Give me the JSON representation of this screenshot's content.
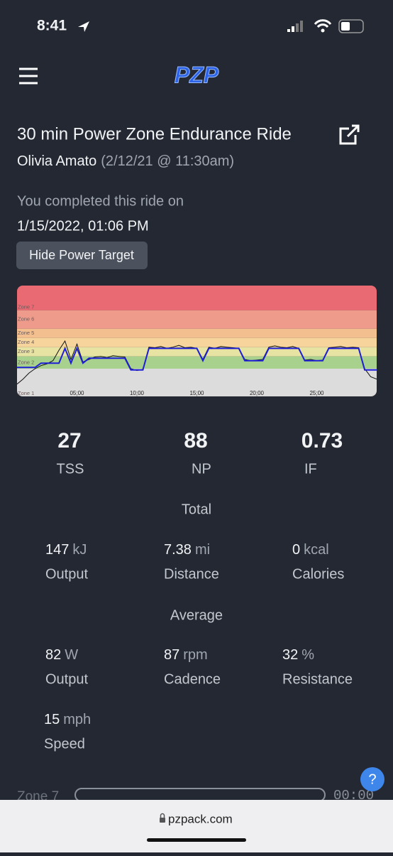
{
  "status_bar": {
    "time": "8:41"
  },
  "header": {
    "logo": "PZP"
  },
  "ride": {
    "title": "30 min Power Zone Endurance Ride",
    "instructor": "Olivia Amato",
    "date": "(2/12/21 @ 11:30am)",
    "completed_label": "You completed this ride on",
    "completed_date": "1/15/2022, 01:06 PM",
    "toggle_button": "Hide Power Target"
  },
  "chart_data": {
    "type": "line",
    "zones": [
      {
        "label": "Zone 1",
        "max": 55,
        "color": "#dcdcdc"
      },
      {
        "label": "Zone 2",
        "max": 75,
        "color": "#a9d18e"
      },
      {
        "label": "Zone 3",
        "max": 90,
        "color": "#e6e3a3"
      },
      {
        "label": "Zone 4",
        "max": 105,
        "color": "#f6d49c"
      },
      {
        "label": "Zone 5",
        "max": 120,
        "color": "#f3bf8f"
      },
      {
        "label": "Zone 6",
        "max": 150,
        "color": "#ef9b8b"
      },
      {
        "label": "Zone 7",
        "max": 190,
        "color": "#e96a73"
      }
    ],
    "x": [
      0,
      0.5,
      1,
      1.5,
      2,
      2.5,
      3,
      3.5,
      4,
      4.5,
      5,
      5.5,
      6,
      6.5,
      7,
      7.5,
      8,
      8.5,
      9,
      9.5,
      10,
      10.5,
      11,
      11.5,
      12,
      12.5,
      13,
      13.5,
      14,
      14.5,
      15,
      15.5,
      16,
      16.5,
      17,
      17.5,
      18,
      18.5,
      19,
      19.5,
      20,
      20.5,
      21,
      21.5,
      22,
      22.5,
      23,
      23.5,
      24,
      24.5,
      25,
      25.5,
      26,
      26.5,
      27,
      27.5,
      28,
      28.5,
      29,
      29.5,
      30
    ],
    "series": [
      {
        "color": "#1f1fd6",
        "values": [
          57,
          57,
          57,
          57,
          64,
          64,
          64,
          64,
          88,
          64,
          88,
          64,
          72,
          72,
          72,
          72,
          72,
          72,
          72,
          53,
          53,
          53,
          88,
          88,
          88,
          88,
          88,
          88,
          88,
          88,
          88,
          68,
          88,
          88,
          88,
          88,
          88,
          88,
          68,
          68,
          68,
          68,
          88,
          88,
          88,
          88,
          88,
          88,
          68,
          68,
          68,
          68,
          88,
          88,
          88,
          88,
          88,
          88,
          53,
          53,
          53
        ]
      },
      {
        "color": "#111111",
        "values": [
          30,
          38,
          48,
          55,
          60,
          63,
          68,
          85,
          100,
          70,
          95,
          66,
          70,
          74,
          75,
          73,
          76,
          75,
          74,
          55,
          52,
          54,
          90,
          89,
          91,
          88,
          90,
          93,
          89,
          90,
          88,
          70,
          90,
          88,
          91,
          90,
          89,
          88,
          70,
          68,
          69,
          70,
          90,
          92,
          90,
          89,
          91,
          88,
          69,
          70,
          68,
          69,
          89,
          90,
          91,
          89,
          90,
          89,
          55,
          42,
          38
        ]
      }
    ],
    "xlim": [
      0,
      30
    ],
    "ylim": [
      10,
      190
    ],
    "xticks": [
      {
        "value": 5,
        "label": "05:00"
      },
      {
        "value": 10,
        "label": "10:00"
      },
      {
        "value": 15,
        "label": "15:00"
      },
      {
        "value": 20,
        "label": "20:00"
      },
      {
        "value": 25,
        "label": "25:00"
      }
    ]
  },
  "summary": {
    "metrics": [
      {
        "value": 27,
        "label": "TSS"
      },
      {
        "value": 88,
        "label": "NP"
      },
      {
        "value": 0.73,
        "label": "IF"
      }
    ]
  },
  "total": {
    "heading": "Total",
    "stats": [
      {
        "value": 147,
        "unit": "kJ",
        "label": "Output"
      },
      {
        "value": 7.38,
        "unit": "mi",
        "label": "Distance"
      },
      {
        "value": 0,
        "unit": "kcal",
        "label": "Calories"
      }
    ]
  },
  "average": {
    "heading": "Average",
    "stats": [
      {
        "value": 82,
        "unit": "W",
        "label": "Output"
      },
      {
        "value": 87,
        "unit": "rpm",
        "label": "Cadence"
      },
      {
        "value": 32,
        "unit": "%",
        "label": "Resistance"
      },
      {
        "value": 15,
        "unit": "mph",
        "label": "Speed"
      }
    ]
  },
  "zone_bars": [
    {
      "label": "Zone 7",
      "time": "00:00"
    }
  ],
  "browser": {
    "url": "pzpack.com"
  },
  "help": "?"
}
